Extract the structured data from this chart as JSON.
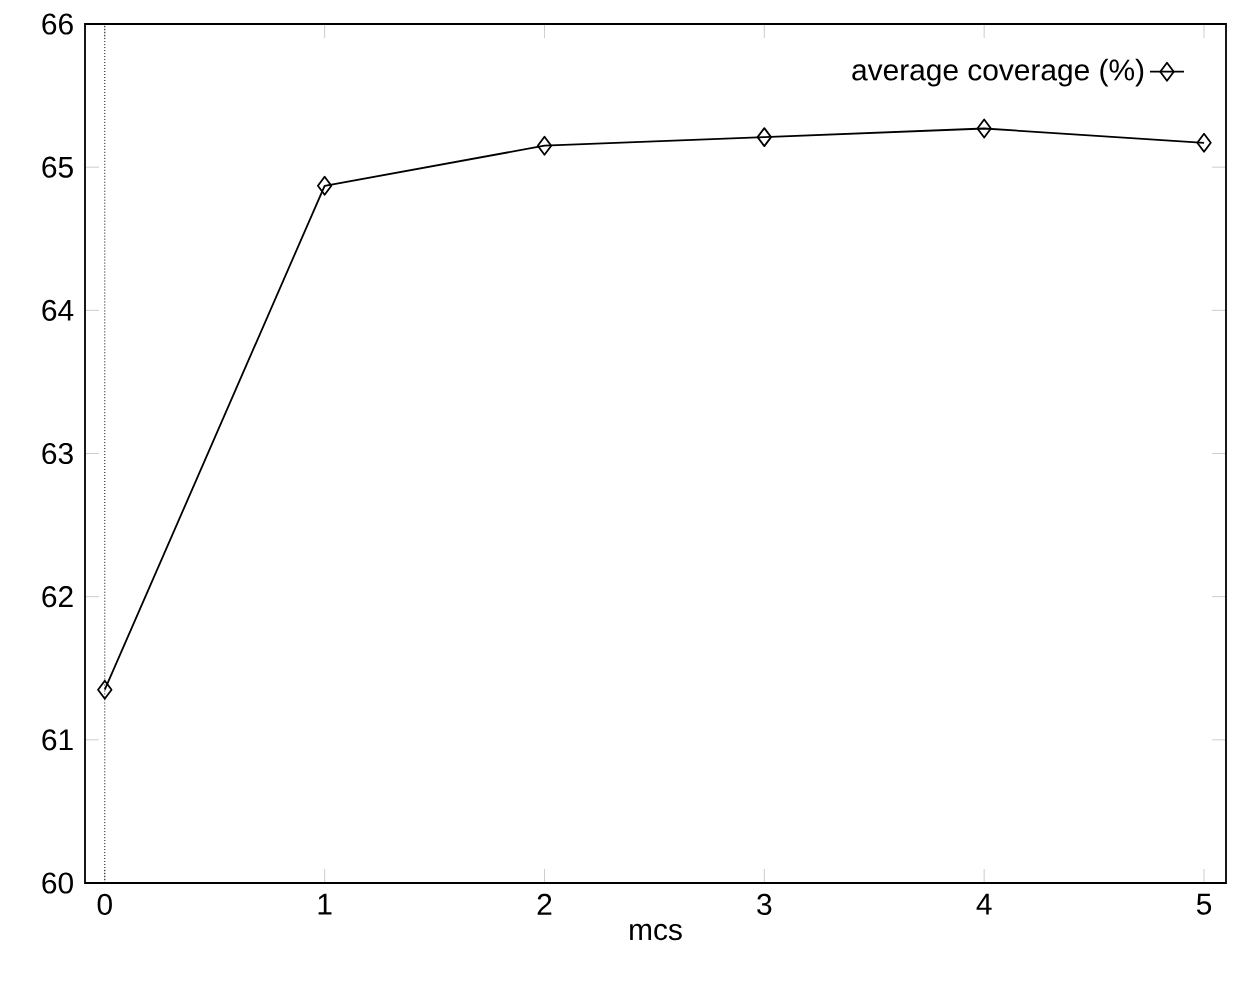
{
  "chart_data": {
    "type": "line",
    "xlabel": "mcs",
    "x": [
      0,
      1,
      2,
      3,
      4,
      5
    ],
    "series": [
      {
        "name": "average coverage (%)",
        "color": "#000000",
        "values": [
          61.35,
          64.87,
          65.15,
          65.21,
          65.27,
          65.17
        ]
      }
    ],
    "xlim": [
      -0.09,
      5.1
    ],
    "ylim": [
      60,
      66
    ],
    "xticks": [
      0,
      1,
      2,
      3,
      4,
      5
    ],
    "yticks": [
      60,
      61,
      62,
      63,
      64,
      65,
      66
    ],
    "ref_lines": [
      {
        "axis": "x",
        "value": 0,
        "line_style": "dotted"
      }
    ],
    "legend": "top right",
    "marker": "diamond",
    "line_style": "solid",
    "grid": false
  }
}
